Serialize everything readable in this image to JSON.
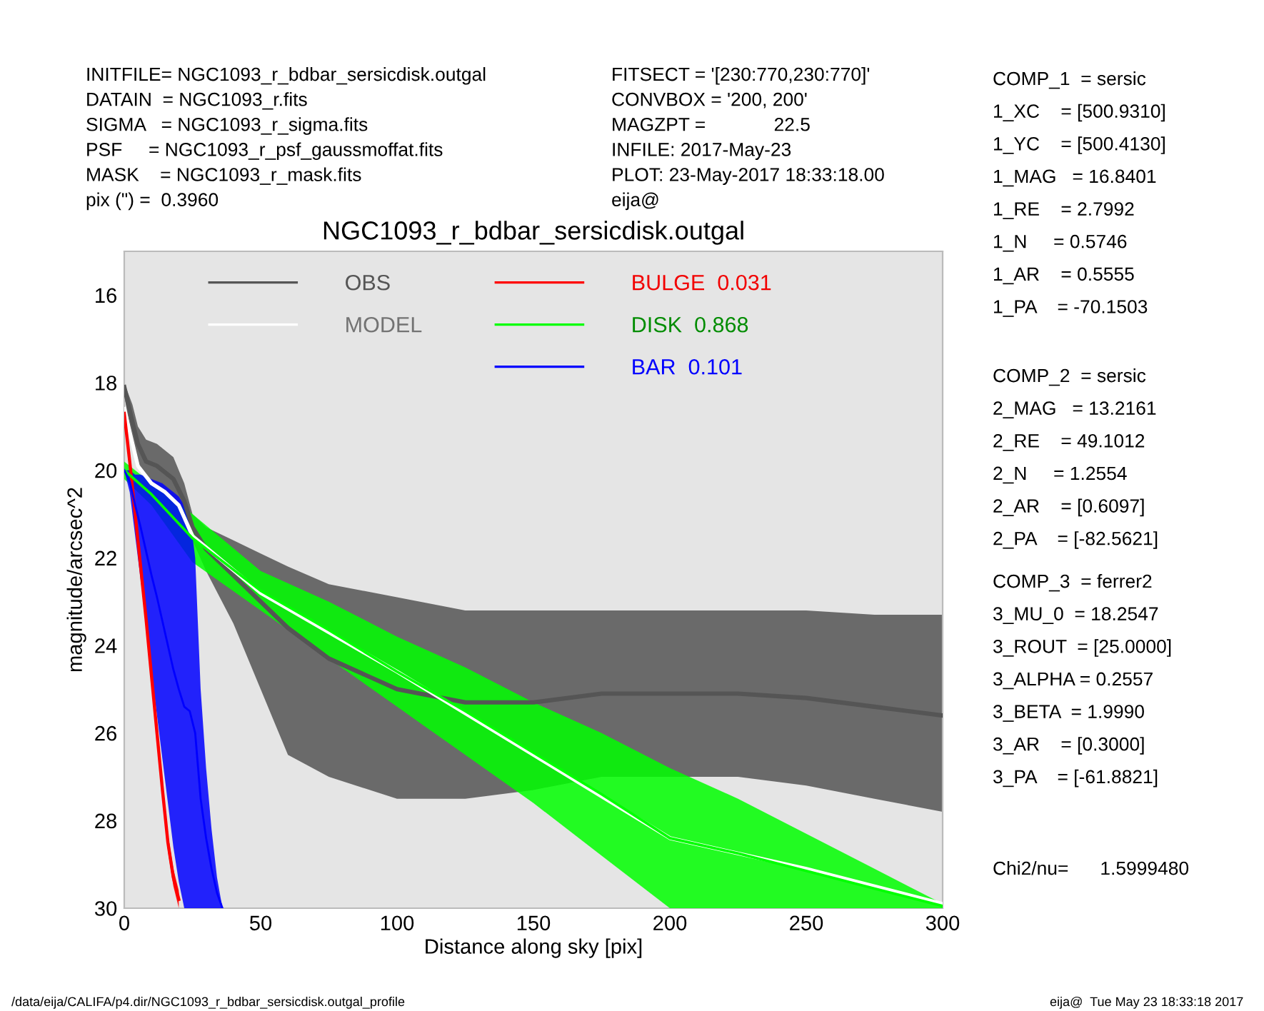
{
  "chart_data": {
    "type": "line",
    "title": "NGC1093_r_bdbar_sersicdisk.outgal",
    "xlabel": "Distance along sky [pix]",
    "ylabel": "magnitude/arcsec^2",
    "xlim": [
      0,
      300
    ],
    "ylim": [
      30,
      15
    ],
    "xticks": [
      0,
      50,
      100,
      150,
      200,
      250,
      300
    ],
    "yticks": [
      16,
      18,
      20,
      22,
      24,
      26,
      28,
      30
    ],
    "grid": false,
    "legend": "top",
    "marker": "none",
    "line_style": "solid",
    "series": [
      {
        "name": "OBS",
        "color": "#555555",
        "x": [
          0,
          3,
          5,
          8,
          12,
          18,
          22,
          25,
          30,
          40,
          50,
          60,
          75,
          100,
          125,
          150,
          175,
          200,
          225,
          250,
          275,
          300
        ],
        "values": [
          18.1,
          18.9,
          19.4,
          19.8,
          19.9,
          20.2,
          20.7,
          21.3,
          21.8,
          22.4,
          23.0,
          23.6,
          24.3,
          25.0,
          25.3,
          25.3,
          25.1,
          25.1,
          25.1,
          25.2,
          25.4,
          25.6
        ],
        "lower": [
          18.0,
          18.5,
          19.0,
          19.3,
          19.4,
          19.7,
          20.3,
          21.0,
          21.3,
          21.6,
          21.9,
          22.2,
          22.6,
          22.9,
          23.2,
          23.2,
          23.2,
          23.2,
          23.2,
          23.2,
          23.3,
          23.3
        ],
        "upper": [
          18.3,
          19.3,
          19.8,
          20.2,
          20.4,
          20.7,
          21.0,
          21.6,
          22.3,
          23.5,
          25.0,
          26.5,
          27.0,
          27.5,
          27.5,
          27.3,
          27.0,
          27.0,
          27.0,
          27.2,
          27.5,
          27.8
        ]
      },
      {
        "name": "MODEL",
        "color": "#ffffff",
        "x": [
          0,
          5,
          10,
          15,
          20,
          25,
          50,
          100,
          150,
          200,
          250,
          300
        ],
        "values": [
          18.6,
          19.9,
          20.3,
          20.5,
          20.8,
          21.5,
          22.8,
          24.6,
          26.5,
          28.4,
          29.1,
          29.9
        ]
      },
      {
        "name": "BULGE  0.031",
        "color": "#ff0000",
        "x": [
          0,
          2,
          4,
          6,
          8,
          10,
          12,
          14,
          16,
          18,
          20
        ],
        "values": [
          18.7,
          19.8,
          21.0,
          22.2,
          23.4,
          24.7,
          26.0,
          27.3,
          28.5,
          29.3,
          29.8
        ],
        "lower": [
          18.6,
          19.6,
          20.8,
          22.0,
          23.2,
          24.5,
          25.8,
          27.1,
          28.3,
          29.1,
          29.6
        ],
        "upper": [
          18.8,
          20.0,
          21.2,
          22.4,
          23.6,
          24.9,
          26.2,
          27.5,
          28.7,
          29.5,
          30.0
        ]
      },
      {
        "name": "DISK  0.868",
        "color": "#00ff00",
        "x": [
          0,
          10,
          25,
          50,
          75,
          100,
          125,
          150,
          175,
          200,
          225,
          250,
          275,
          300
        ],
        "values": [
          20.0,
          20.55,
          21.55,
          22.75,
          23.65,
          24.6,
          25.5,
          26.45,
          27.4,
          28.4,
          28.75,
          29.15,
          29.55,
          29.95
        ],
        "lower": [
          19.8,
          20.3,
          21.0,
          22.3,
          23.0,
          23.8,
          24.5,
          25.3,
          26.0,
          26.8,
          27.5,
          28.3,
          29.1,
          29.9
        ],
        "upper": [
          20.2,
          20.8,
          22.1,
          23.2,
          24.3,
          25.4,
          26.5,
          27.6,
          28.8,
          30.0,
          30.0,
          30.0,
          30.0,
          30.0
        ]
      },
      {
        "name": "BAR  0.101",
        "color": "#0000ff",
        "x": [
          0,
          2,
          4,
          6,
          8,
          10,
          12,
          14,
          16,
          18,
          20,
          22,
          24,
          26,
          27,
          28,
          30,
          32,
          34,
          36
        ],
        "values": [
          20.0,
          20.25,
          20.8,
          21.3,
          21.85,
          22.4,
          22.9,
          23.45,
          24.0,
          24.55,
          25.0,
          25.4,
          25.5,
          26.0,
          26.75,
          27.5,
          28.4,
          29.1,
          29.65,
          30.0
        ],
        "lower": [
          20.0,
          20.0,
          20.1,
          20.1,
          20.15,
          20.2,
          20.25,
          20.3,
          20.4,
          20.5,
          20.6,
          20.8,
          21.0,
          22.0,
          23.5,
          25.0,
          26.8,
          28.2,
          29.3,
          30.0
        ],
        "upper": [
          20.0,
          20.5,
          21.5,
          22.5,
          23.5,
          24.6,
          25.6,
          26.6,
          27.6,
          28.6,
          29.4,
          30.0,
          30.0,
          30.0,
          30.0,
          30.0,
          30.0,
          30.0,
          30.0,
          30.0
        ]
      }
    ],
    "annotations": [
      "INITFILE= NGC1093_r_bdbar_sersicdisk.outgal\nDATAIN  = NGC1093_r.fits\nSIGMA   = NGC1093_r_sigma.fits\nPSF     = NGC1093_r_psf_gaussmoffat.fits\nMASK    = NGC1093_r_mask.fits\npix (\") =  0.3960",
      "FITSECT = '[230:770,230:770]'\nCONVBOX = '200, 200'\nMAGZPT =             22.5\nINFILE: 2017-May-23\nPLOT: 23-May-2017 18:33:18.00\neija@",
      "COMP_1  = sersic\n1_XC    = [500.9310]\n1_YC    = [500.4130]\n1_MAG   = 16.8401\n1_RE    = 2.7992\n1_N     = 0.5746\n1_AR    = 0.5555\n1_PA    = -70.1503",
      "COMP_2  = sersic\n2_MAG   = 13.2161\n2_RE    = 49.1012\n2_N     = 1.2554\n2_AR    = [0.6097]\n2_PA    = [-82.5621]",
      "COMP_3  = ferrer2\n3_MU_0  = 18.2547\n3_ROUT  = [25.0000]\n3_ALPHA = 0.2557\n3_BETA  = 1.9990\n3_AR    = [0.3000]\n3_PA    = [-61.8821]",
      "Chi2/nu=      1.5999480",
      "/data/eija/CALIFA/p4.dir/NGC1093_r_bdbar_sersicdisk.outgal_profile",
      "eija@  Tue May 23 18:33:18 2017"
    ]
  }
}
